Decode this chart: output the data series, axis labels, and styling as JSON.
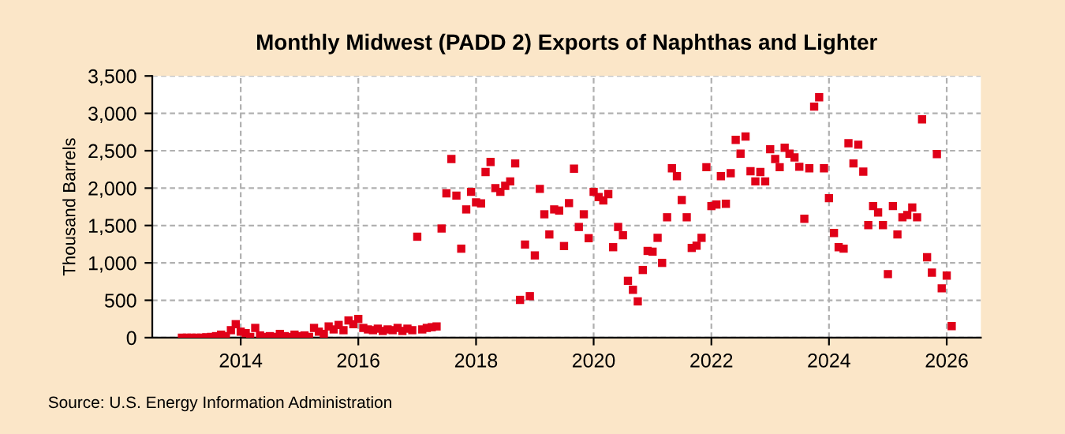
{
  "chart_data": {
    "type": "scatter",
    "title": "Monthly Midwest (PADD 2) Exports of Naphthas and Lighter",
    "ylabel": "Thousand Barrels",
    "annotations": [
      "Source: U.S. Energy Information Administration"
    ],
    "x": [
      "2013-01",
      "2013-02",
      "2013-03",
      "2013-04",
      "2013-05",
      "2013-06",
      "2013-07",
      "2013-08",
      "2013-09",
      "2013-10",
      "2013-11",
      "2013-12",
      "2014-01",
      "2014-02",
      "2014-03",
      "2014-04",
      "2014-05",
      "2014-06",
      "2014-07",
      "2014-08",
      "2014-09",
      "2014-10",
      "2014-11",
      "2014-12",
      "2015-01",
      "2015-02",
      "2015-03",
      "2015-04",
      "2015-05",
      "2015-06",
      "2015-07",
      "2015-08",
      "2015-09",
      "2015-10",
      "2015-11",
      "2015-12",
      "2016-01",
      "2016-02",
      "2016-03",
      "2016-04",
      "2016-05",
      "2016-06",
      "2016-07",
      "2016-08",
      "2016-09",
      "2016-10",
      "2016-11",
      "2016-12",
      "2017-01",
      "2017-02",
      "2017-03",
      "2017-04",
      "2017-05",
      "2017-06",
      "2017-07",
      "2017-08",
      "2017-09",
      "2017-10",
      "2017-11",
      "2017-12",
      "2018-01",
      "2018-02",
      "2018-03",
      "2018-04",
      "2018-05",
      "2018-06",
      "2018-07",
      "2018-08",
      "2018-09",
      "2018-10",
      "2018-11",
      "2018-12",
      "2019-01",
      "2019-02",
      "2019-03",
      "2019-04",
      "2019-05",
      "2019-06",
      "2019-07",
      "2019-08",
      "2019-09",
      "2019-10",
      "2019-11",
      "2019-12",
      "2020-01",
      "2020-02",
      "2020-03",
      "2020-04",
      "2020-05",
      "2020-06",
      "2020-07",
      "2020-08",
      "2020-09",
      "2020-10",
      "2020-11",
      "2020-12",
      "2021-01",
      "2021-02",
      "2021-03",
      "2021-04",
      "2021-05",
      "2021-06",
      "2021-07",
      "2021-08",
      "2021-09",
      "2021-10",
      "2021-11",
      "2021-12",
      "2022-01",
      "2022-02",
      "2022-03",
      "2022-04",
      "2022-05",
      "2022-06",
      "2022-07",
      "2022-08",
      "2022-09",
      "2022-10",
      "2022-11",
      "2022-12",
      "2023-01",
      "2023-02",
      "2023-03",
      "2023-04",
      "2023-05",
      "2023-06",
      "2023-07",
      "2023-08",
      "2023-09",
      "2023-10",
      "2023-11",
      "2023-12",
      "2024-01",
      "2024-02",
      "2024-03",
      "2024-04",
      "2024-05",
      "2024-06",
      "2024-07",
      "2024-08",
      "2024-09",
      "2024-10",
      "2024-11",
      "2024-12",
      "2025-01",
      "2025-02",
      "2025-03",
      "2025-04",
      "2025-05",
      "2025-06",
      "2025-07",
      "2025-08",
      "2025-09",
      "2025-10",
      "2025-11",
      "2025-12",
      "2026-01",
      "2026-02"
    ],
    "series": [
      {
        "color": "#e00018",
        "values": [
          0,
          0,
          0,
          0,
          0,
          5,
          10,
          20,
          40,
          20,
          100,
          180,
          80,
          60,
          10,
          130,
          30,
          10,
          20,
          10,
          50,
          20,
          10,
          40,
          20,
          30,
          10,
          130,
          80,
          50,
          150,
          110,
          170,
          100,
          230,
          180,
          250,
          130,
          110,
          100,
          120,
          90,
          110,
          100,
          130,
          90,
          120,
          100,
          1350,
          110,
          130,
          140,
          150,
          1460,
          1930,
          2390,
          1900,
          1190,
          1715,
          1950,
          1810,
          1795,
          2215,
          2350,
          2000,
          1950,
          2030,
          2090,
          2330,
          505,
          1245,
          555,
          1100,
          1990,
          1650,
          1380,
          1715,
          1700,
          1225,
          1800,
          2260,
          1480,
          1650,
          1330,
          1950,
          1880,
          1835,
          1920,
          1210,
          1480,
          1370,
          760,
          640,
          485,
          905,
          1160,
          1150,
          1335,
          1000,
          1610,
          2265,
          2160,
          1840,
          1610,
          1200,
          1230,
          1335,
          2280,
          1760,
          1780,
          2160,
          1790,
          2200,
          2645,
          2460,
          2690,
          2225,
          2090,
          2215,
          2090,
          2520,
          2390,
          2280,
          2540,
          2460,
          2410,
          2285,
          1590,
          2265,
          3090,
          3215,
          2265,
          1865,
          1400,
          1210,
          1190,
          2600,
          2330,
          2580,
          2220,
          1505,
          1760,
          1675,
          1505,
          850,
          1760,
          1380,
          1610,
          1640,
          1740,
          1610,
          2920,
          1075,
          870,
          2455,
          660,
          830,
          155
        ]
      }
    ],
    "marker": "square",
    "grid": true,
    "xlim": [
      "2012-07",
      "2026-08"
    ],
    "xticks": [
      "2014",
      "2016",
      "2018",
      "2020",
      "2022",
      "2024",
      "2026"
    ],
    "ylim": [
      0,
      3500
    ],
    "yticks": [
      0,
      500,
      {
        "value": 1000,
        "label": "1,000"
      },
      {
        "value": 1500,
        "label": "1,500"
      },
      {
        "value": 2000,
        "label": "2,000"
      },
      {
        "value": 2500,
        "label": "2,500"
      },
      {
        "value": 3000,
        "label": "3,000"
      },
      {
        "value": 3500,
        "label": "3,500"
      }
    ]
  }
}
